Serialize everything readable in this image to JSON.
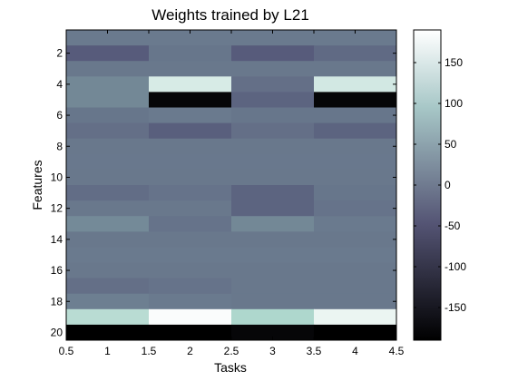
{
  "chart_data": {
    "type": "heatmap",
    "title": "Weights trained by L21",
    "xlabel": "Tasks",
    "ylabel": "Features",
    "x_range": [
      0.5,
      4.5
    ],
    "y_range": [
      0.5,
      20.5
    ],
    "x_ticks": [
      0.5,
      1,
      1.5,
      2,
      2.5,
      3,
      3.5,
      4,
      4.5
    ],
    "x_tick_labels": [
      "0.5",
      "1",
      "1.5",
      "2",
      "2.5",
      "3",
      "3.5",
      "4",
      "4.5"
    ],
    "y_ticks": [
      2,
      4,
      6,
      8,
      10,
      12,
      14,
      16,
      18,
      20
    ],
    "y_tick_labels": [
      "2",
      "4",
      "6",
      "8",
      "10",
      "12",
      "14",
      "16",
      "18",
      "20"
    ],
    "colormap": "bone",
    "clim": [
      -190,
      190
    ],
    "colorbar_ticks": [
      150,
      100,
      50,
      0,
      -50,
      -100,
      -150
    ],
    "colorbar_tick_labels": [
      "150",
      "100",
      "50",
      "0",
      "-50",
      "-100",
      "-150"
    ],
    "tasks": [
      1,
      2,
      3,
      4
    ],
    "features": [
      1,
      2,
      3,
      4,
      5,
      6,
      7,
      8,
      9,
      10,
      11,
      12,
      13,
      14,
      15,
      16,
      17,
      18,
      19,
      20
    ],
    "values": [
      [
        0,
        0,
        0,
        0
      ],
      [
        -35,
        -5,
        -35,
        -18
      ],
      [
        -3,
        -3,
        -3,
        -3
      ],
      [
        15,
        150,
        -12,
        145
      ],
      [
        15,
        -180,
        -25,
        -180
      ],
      [
        -5,
        0,
        -5,
        -5
      ],
      [
        -12,
        -30,
        -12,
        -25
      ],
      [
        -3,
        -3,
        -3,
        -3
      ],
      [
        -2,
        -2,
        -2,
        -2
      ],
      [
        -3,
        -3,
        -3,
        -3
      ],
      [
        -15,
        -8,
        -25,
        -5
      ],
      [
        -3,
        -3,
        -25,
        -8
      ],
      [
        18,
        -8,
        15,
        0
      ],
      [
        -3,
        -3,
        -3,
        -3
      ],
      [
        0,
        0,
        0,
        0
      ],
      [
        -3,
        -3,
        -3,
        -3
      ],
      [
        -12,
        -8,
        -3,
        -3
      ],
      [
        5,
        0,
        -3,
        -3
      ],
      [
        120,
        185,
        110,
        170
      ],
      [
        -190,
        -190,
        -180,
        -190
      ]
    ]
  }
}
